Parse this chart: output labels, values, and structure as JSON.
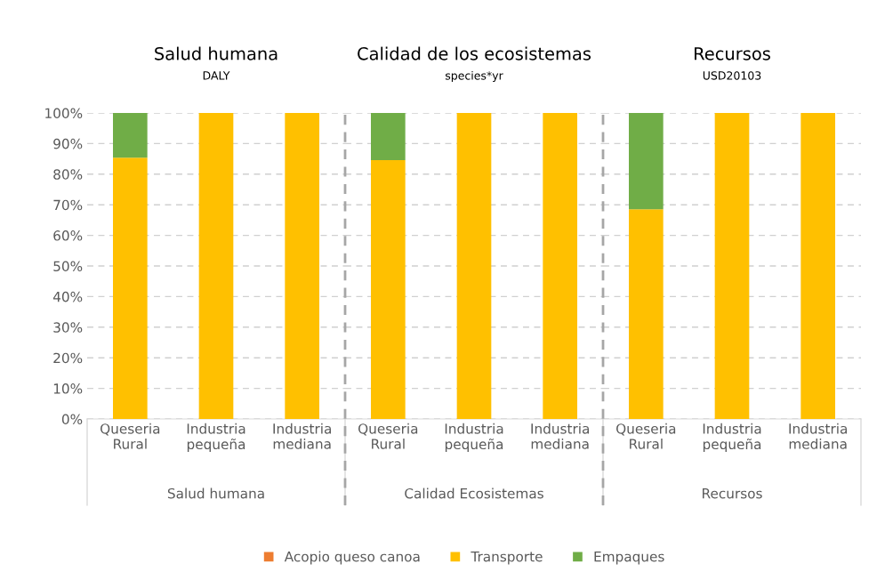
{
  "chart_data": [
    {
      "type": "bar",
      "title": "Salud humana",
      "subtitle": "DALY",
      "xlabel": "Salud humana",
      "stacked": true,
      "legend": "bottom",
      "grid": "y",
      "categories": [
        "Queseria Rural",
        "Industria pequeña",
        "Industria mediana"
      ],
      "series": [
        {
          "name": "Acopio queso canoa",
          "color": "#ed7d31",
          "values": [
            0,
            0,
            0
          ]
        },
        {
          "name": "Transporte",
          "color": "#ffc000",
          "values": [
            85.4,
            100,
            100
          ]
        },
        {
          "name": "Empaques",
          "color": "#70ad47",
          "values": [
            14.6,
            0,
            0
          ]
        }
      ],
      "ylim": [
        0,
        100
      ],
      "yticks": [
        {
          "value": 0,
          "label": "0%"
        },
        {
          "value": 10,
          "label": "10%"
        },
        {
          "value": 20,
          "label": "20%"
        },
        {
          "value": 30,
          "label": "30%"
        },
        {
          "value": 40,
          "label": "40%"
        },
        {
          "value": 50,
          "label": "50%"
        },
        {
          "value": 60,
          "label": "60%"
        },
        {
          "value": 70,
          "label": "70%"
        },
        {
          "value": 80,
          "label": "80%"
        },
        {
          "value": 90,
          "label": "90%"
        },
        {
          "value": 100,
          "label": "100%"
        }
      ]
    },
    {
      "type": "bar",
      "title": "Calidad de los ecosistemas",
      "subtitle": "species*yr",
      "xlabel": "Calidad Ecosistemas",
      "stacked": true,
      "grid": "y",
      "tick_labels": "x",
      "categories": [
        "Queseria Rural",
        "Industria pequeña",
        "Industria mediana"
      ],
      "series": [
        {
          "color": "#ed7d31",
          "values": [
            0,
            0,
            0
          ]
        },
        {
          "color": "#ffc000",
          "values": [
            84.6,
            100,
            100
          ]
        },
        {
          "color": "#70ad47",
          "values": [
            15.4,
            0,
            0
          ]
        }
      ],
      "ylim": [
        0,
        100
      ]
    },
    {
      "type": "bar",
      "title": "Recursos",
      "subtitle": "USD20103",
      "xlabel": "Recursos",
      "stacked": true,
      "grid": "y",
      "tick_labels": "x",
      "categories": [
        "Queseria Rural",
        "Industria pequeña",
        "Industria mediana"
      ],
      "series": [
        {
          "color": "#ed7d31",
          "values": [
            0,
            0,
            0
          ]
        },
        {
          "color": "#ffc000",
          "values": [
            68.5,
            100,
            100
          ]
        },
        {
          "color": "#70ad47",
          "values": [
            31.5,
            0,
            0
          ]
        }
      ],
      "ylim": [
        0,
        100
      ]
    }
  ]
}
